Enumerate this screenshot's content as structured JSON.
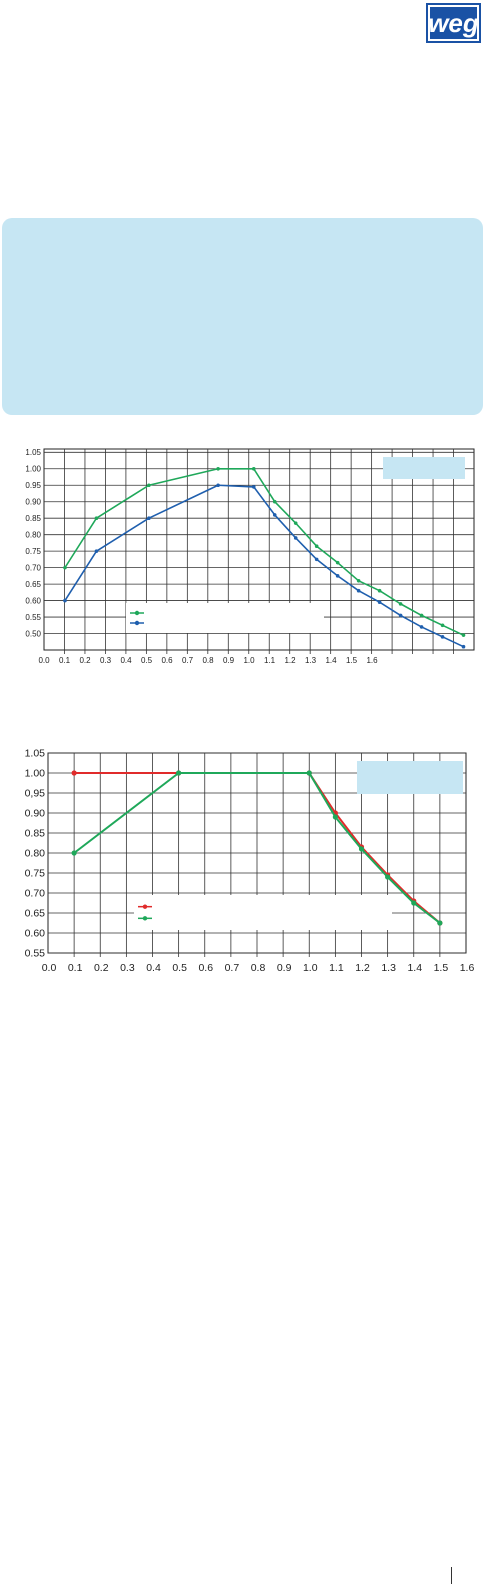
{
  "brand": {
    "logo_text": "weg",
    "color": "#1a52a5"
  },
  "info_panel": {
    "color": "#c6e6f3"
  },
  "chart_data": [
    {
      "type": "line",
      "title": "",
      "xlabel": "",
      "ylabel": "",
      "xlim": [
        0.0,
        2.05
      ],
      "ylim": [
        0.45,
        1.06
      ],
      "grid": true,
      "legend": "bottom-center",
      "x_tick_labels": [
        "0.0",
        "0.1",
        "0.2",
        "0.3",
        "0.4",
        "0.5",
        "0.6",
        "0.7",
        "0.8",
        "0.9",
        "1.0",
        "1.1",
        "1.2",
        "1.3",
        "1.4",
        "1.5",
        "1.6"
      ],
      "y_ticks": [
        0.5,
        0.55,
        0.6,
        0.65,
        0.7,
        0.75,
        0.8,
        0.85,
        0.9,
        0.95,
        1.0,
        1.05
      ],
      "y_tick_labels": [
        "0.50",
        "0.55",
        "0.60",
        "0.65",
        "0.70",
        "0.75",
        "0.80",
        "0.85",
        "0.90",
        "0.95",
        "1.00",
        "1.05"
      ],
      "series": [
        {
          "color": "#1fa85a",
          "x": [
            0.1,
            0.25,
            0.5,
            0.83,
            1.0,
            1.1,
            1.2,
            1.3,
            1.4,
            1.5,
            1.6,
            1.7,
            1.8,
            1.9,
            2.0
          ],
          "values": [
            0.7,
            0.85,
            0.95,
            1.0,
            1.0,
            0.9,
            0.835,
            0.765,
            0.715,
            0.66,
            0.63,
            0.59,
            0.555,
            0.525,
            0.495
          ]
        },
        {
          "color": "#1f5fae",
          "x": [
            0.1,
            0.25,
            0.5,
            0.83,
            1.0,
            1.1,
            1.2,
            1.3,
            1.4,
            1.5,
            1.6,
            1.7,
            1.8,
            1.9,
            2.0
          ],
          "values": [
            0.6,
            0.75,
            0.85,
            0.95,
            0.945,
            0.86,
            0.79,
            0.725,
            0.675,
            0.63,
            0.595,
            0.555,
            0.52,
            0.49,
            0.46
          ]
        }
      ]
    },
    {
      "type": "line",
      "title": "",
      "xlabel": "",
      "ylabel": "",
      "xlim": [
        0.0,
        1.6
      ],
      "ylim": [
        0.55,
        1.05
      ],
      "grid": true,
      "legend": "bottom-center",
      "x_tick_labels": [
        "0.0",
        "0.1",
        "0.2",
        "0.3",
        "0.4",
        "0.5",
        "0.6",
        "0.7",
        "0.8",
        "0.9",
        "1.0",
        "1.1",
        "1.2",
        "1.3",
        "1.4",
        "1.5",
        "1.6"
      ],
      "y_ticks": [
        0.55,
        0.6,
        0.65,
        0.7,
        0.75,
        0.8,
        0.85,
        0.9,
        0.95,
        1.0,
        1.05
      ],
      "y_tick_labels": [
        "0.55",
        "0.60",
        "0.65",
        "0.70",
        "0.75",
        "0.80",
        "0.85",
        "0.90",
        "0,95",
        "1.00",
        "1.05"
      ],
      "series": [
        {
          "color": "#e02b2b",
          "x": [
            0.1,
            0.5,
            1.0,
            1.1,
            1.2,
            1.3,
            1.4,
            1.5
          ],
          "values": [
            1.0,
            1.0,
            1.0,
            0.9,
            0.815,
            0.745,
            0.68,
            0.625
          ]
        },
        {
          "color": "#1fa85a",
          "x": [
            0.1,
            0.5,
            1.0,
            1.1,
            1.2,
            1.3,
            1.4,
            1.5
          ],
          "values": [
            0.8,
            1.0,
            1.0,
            0.89,
            0.81,
            0.74,
            0.675,
            0.625
          ]
        }
      ]
    }
  ]
}
